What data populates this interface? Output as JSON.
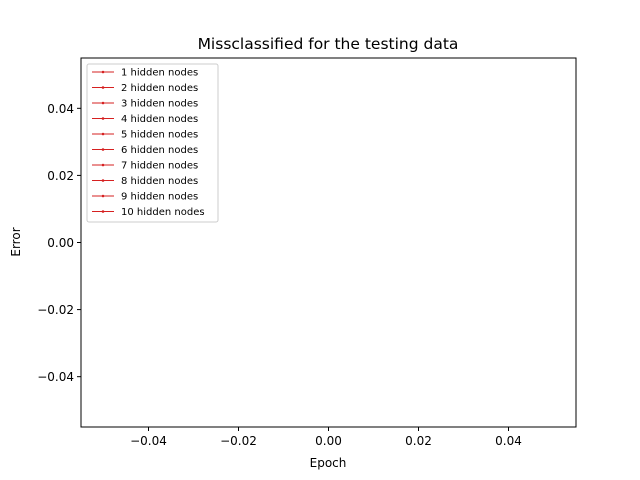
{
  "chart_data": {
    "type": "line",
    "title": "Missclassified for the testing data",
    "xlabel": "Epoch",
    "ylabel": "Error",
    "xlim": [
      -0.055,
      0.055
    ],
    "ylim": [
      -0.055,
      0.055
    ],
    "xticks": [
      {
        "value": -0.04,
        "label": "−0.04"
      },
      {
        "value": -0.02,
        "label": "−0.02"
      },
      {
        "value": 0.0,
        "label": "0.00"
      },
      {
        "value": 0.02,
        "label": "0.02"
      },
      {
        "value": 0.04,
        "label": "0.04"
      }
    ],
    "yticks": [
      {
        "value": -0.04,
        "label": "−0.04"
      },
      {
        "value": -0.02,
        "label": "−0.02"
      },
      {
        "value": 0.0,
        "label": "0.00"
      },
      {
        "value": 0.02,
        "label": "0.02"
      },
      {
        "value": 0.04,
        "label": "0.04"
      }
    ],
    "grid": false,
    "legend_position": "top-left",
    "series_color": "#d62020",
    "series": [
      {
        "name": "1 hidden nodes",
        "x": [],
        "y": []
      },
      {
        "name": "2 hidden nodes",
        "x": [],
        "y": []
      },
      {
        "name": "3 hidden nodes",
        "x": [],
        "y": []
      },
      {
        "name": "4 hidden nodes",
        "x": [],
        "y": []
      },
      {
        "name": "5 hidden nodes",
        "x": [],
        "y": []
      },
      {
        "name": "6 hidden nodes",
        "x": [],
        "y": []
      },
      {
        "name": "7 hidden nodes",
        "x": [],
        "y": []
      },
      {
        "name": "8 hidden nodes",
        "x": [],
        "y": []
      },
      {
        "name": "9 hidden nodes",
        "x": [],
        "y": []
      },
      {
        "name": "10 hidden nodes",
        "x": [],
        "y": []
      }
    ]
  }
}
